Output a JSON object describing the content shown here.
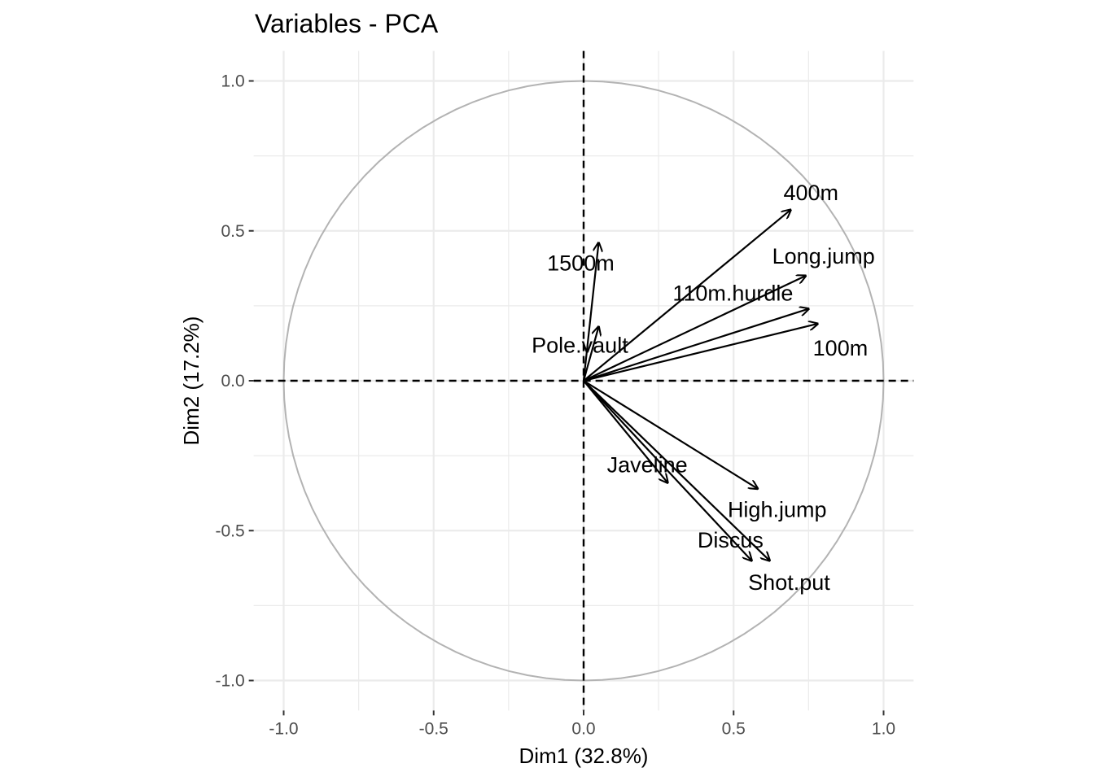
{
  "chart_data": {
    "type": "scatter",
    "subtype": "pca-variable-correlation-circle",
    "title": "Variables - PCA",
    "xlabel": "Dim1 (32.8%)",
    "ylabel": "Dim2 (17.2%)",
    "xlim": [
      -1.1,
      1.1
    ],
    "ylim": [
      -1.1,
      1.1
    ],
    "x_ticks": [
      {
        "value": -1.0,
        "label": "-1.0"
      },
      {
        "value": -0.5,
        "label": "-0.5"
      },
      {
        "value": 0.0,
        "label": "0.0"
      },
      {
        "value": 0.5,
        "label": "0.5"
      },
      {
        "value": 1.0,
        "label": "1.0"
      }
    ],
    "y_ticks": [
      {
        "value": 1.0,
        "label": "1.0"
      },
      {
        "value": 0.5,
        "label": "0.5"
      },
      {
        "value": 0.0,
        "label": "0.0"
      },
      {
        "value": -0.5,
        "label": "-0.5"
      },
      {
        "value": -1.0,
        "label": "-1.0"
      }
    ],
    "grid": true,
    "unit_circle": true,
    "zero_lines": "dashed",
    "colors": {
      "arrows": "#000000",
      "circle": "#b3b3b3",
      "grid": "#ebebeb"
    },
    "variables": [
      {
        "name": "100m",
        "x": 0.78,
        "y": 0.19
      },
      {
        "name": "Long.jump",
        "x": 0.74,
        "y": 0.35
      },
      {
        "name": "110m.hurdle",
        "x": 0.75,
        "y": 0.24
      },
      {
        "name": "400m",
        "x": 0.69,
        "y": 0.57
      },
      {
        "name": "1500m",
        "x": 0.05,
        "y": 0.46
      },
      {
        "name": "Pole.vault",
        "x": 0.05,
        "y": 0.18
      },
      {
        "name": "Javeline",
        "x": 0.28,
        "y": -0.34
      },
      {
        "name": "High.jump",
        "x": 0.58,
        "y": -0.36
      },
      {
        "name": "Discus",
        "x": 0.56,
        "y": -0.6
      },
      {
        "name": "Shot.put",
        "x": 0.62,
        "y": -0.6
      }
    ]
  }
}
